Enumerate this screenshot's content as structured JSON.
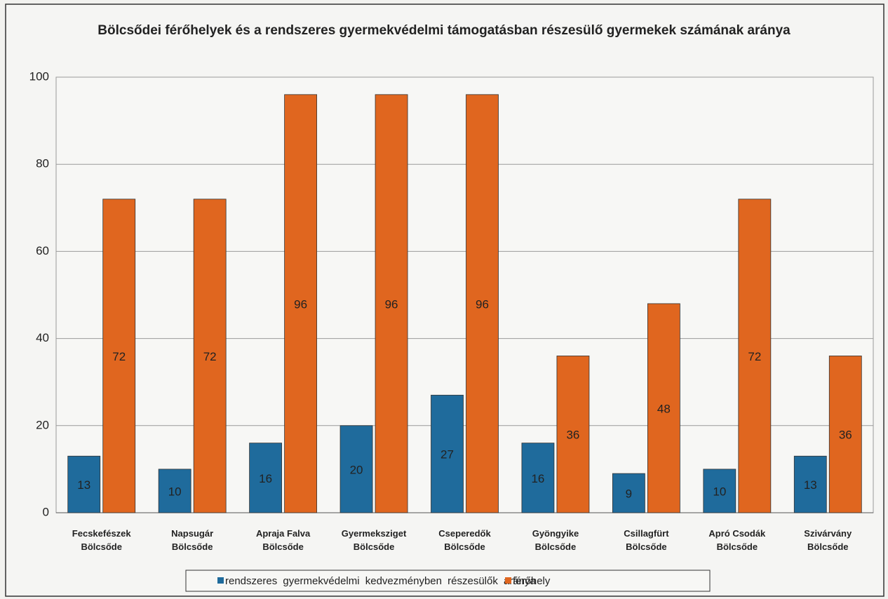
{
  "chart_data": {
    "type": "bar",
    "title": "Bölcsődei férőhelyek és a rendszeres gyermekvédelmi támogatásban részesülő gyermekek számának aránya",
    "categories": [
      "Fecskefészek Bölcsőde",
      "Napsugár Bölcsőde",
      "Apraja Falva Bölcsőde",
      "Gyermeksziget Bölcsőde",
      "Cseperedők Bölcsőde",
      "Gyöngyike Bölcsőde",
      "Csillagfürt Bölcsőde",
      "Apró Csodák Bölcsőde",
      "Szivárvány Bölcsőde"
    ],
    "series": [
      {
        "name": "rendszeres gyermekvédelmi kedvezményben részesülők aránya",
        "color": "#1f6b9c",
        "values": [
          13,
          10,
          16,
          20,
          27,
          16,
          9,
          10,
          13
        ]
      },
      {
        "name": "férőhely",
        "color": "#e0661f",
        "values": [
          72,
          72,
          96,
          96,
          96,
          36,
          48,
          72,
          36
        ]
      }
    ],
    "ylim": [
      0,
      100
    ],
    "yticks": [
      0,
      20,
      40,
      60,
      80,
      100
    ],
    "grid": true,
    "legend": "bottom"
  }
}
